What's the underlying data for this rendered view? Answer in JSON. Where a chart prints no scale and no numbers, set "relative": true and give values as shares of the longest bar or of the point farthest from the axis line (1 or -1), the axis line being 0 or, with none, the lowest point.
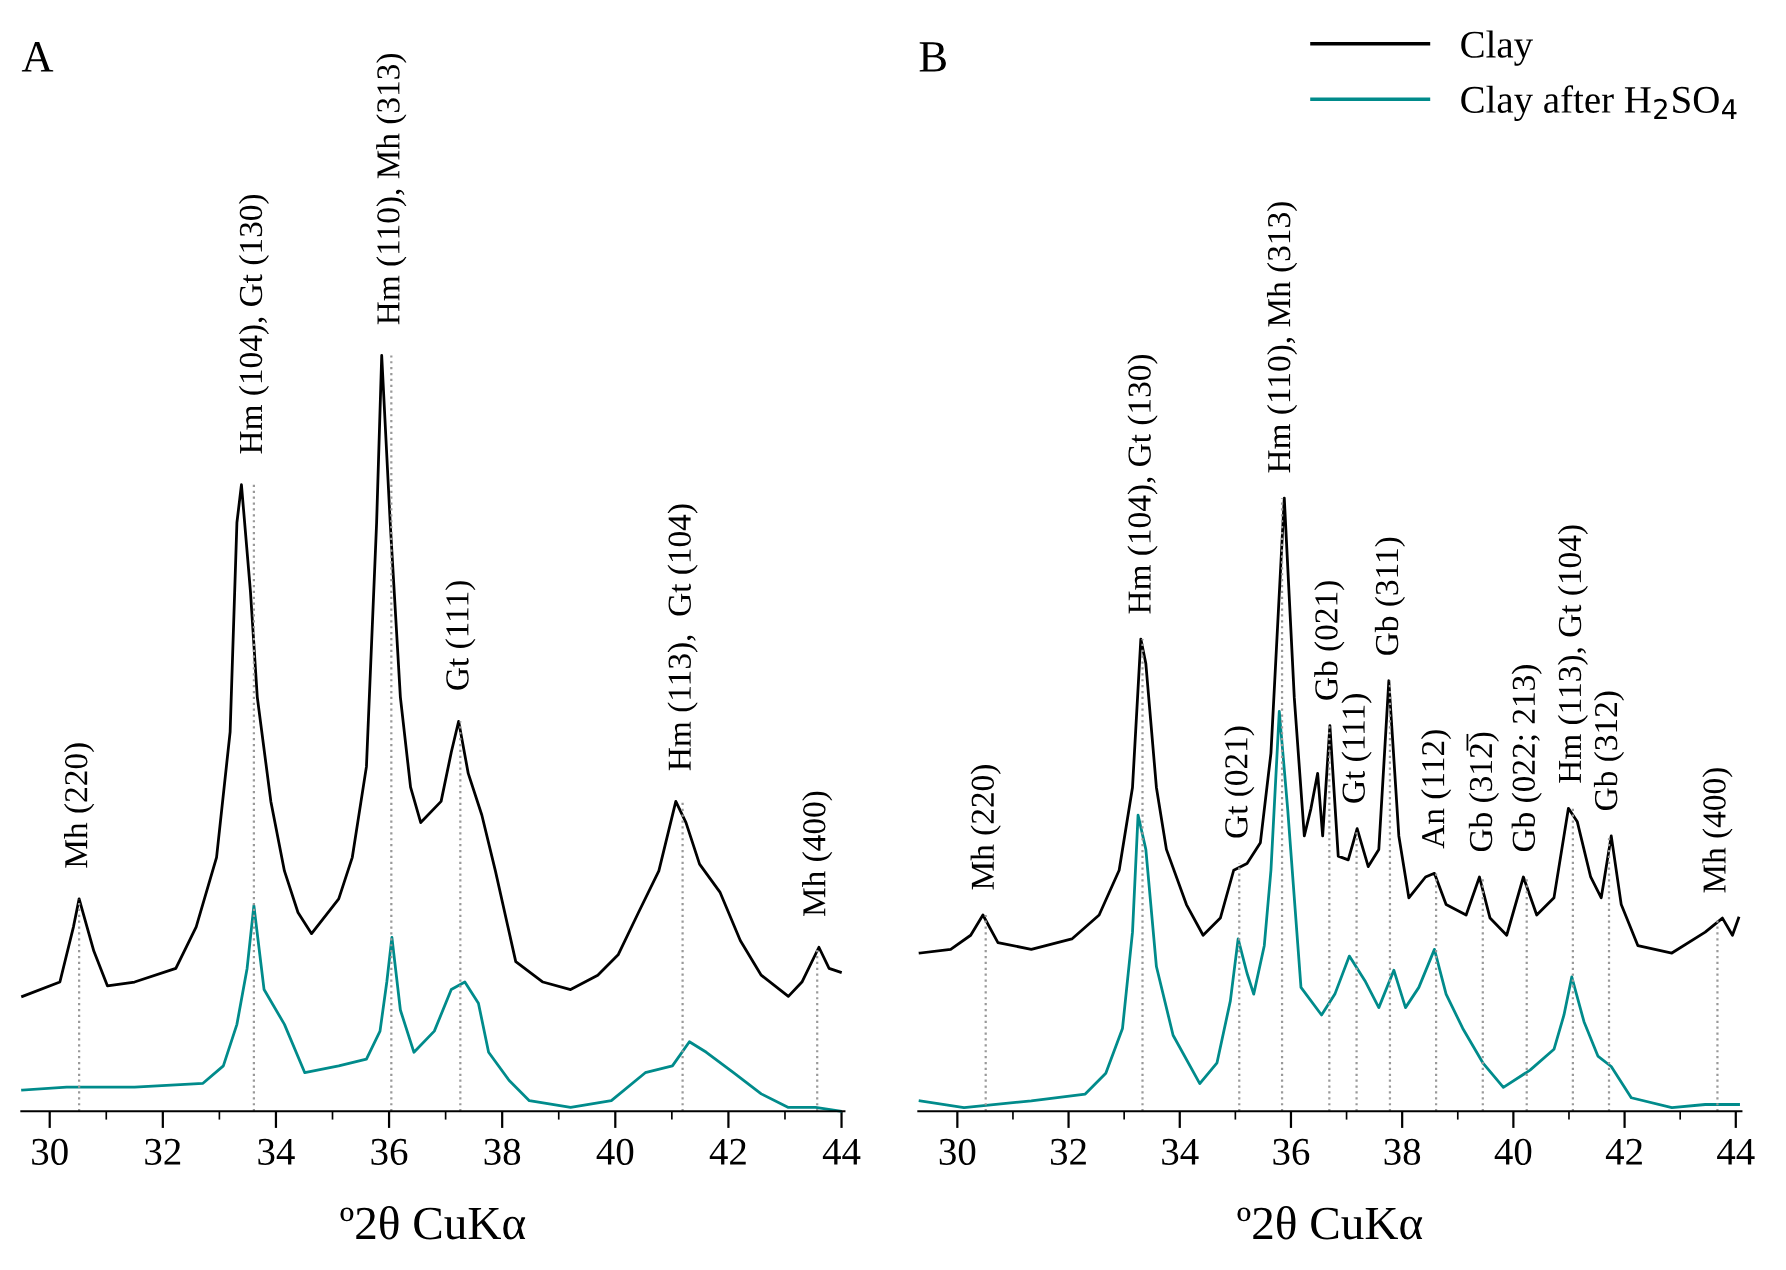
{
  "chart_data": [
    {
      "type": "line",
      "title": "A",
      "xlabel": "º2θ CuKα",
      "relative": true,
      "xlim": [
        29.5,
        44.05
      ],
      "xticks": [
        30,
        32,
        34,
        36,
        38,
        40,
        42,
        44
      ],
      "grid": false,
      "legend": false,
      "tick_labels": "x",
      "series": [
        {
          "color": "#000000",
          "x": [
            29.52,
            30.18,
            30.42,
            30.52,
            30.78,
            31.02,
            31.5,
            32.23,
            32.59,
            32.95,
            33.19,
            33.31,
            33.39,
            33.55,
            33.67,
            33.91,
            34.15,
            34.39,
            34.63,
            35.11,
            35.35,
            35.6,
            35.78,
            35.87,
            36.02,
            36.2,
            36.38,
            36.56,
            36.92,
            37.1,
            37.23,
            37.4,
            37.64,
            37.88,
            38.24,
            38.72,
            39.21,
            39.69,
            40.05,
            40.41,
            40.77,
            41.07,
            41.25,
            41.49,
            41.85,
            42.21,
            42.58,
            43.06,
            43.3,
            43.6,
            43.78,
            43.98
          ],
          "values": [
            0.152,
            0.171,
            0.244,
            0.281,
            0.212,
            0.166,
            0.171,
            0.189,
            0.244,
            0.336,
            0.502,
            0.779,
            0.829,
            0.687,
            0.548,
            0.41,
            0.318,
            0.263,
            0.235,
            0.281,
            0.336,
            0.456,
            0.779,
            1.0,
            0.779,
            0.548,
            0.429,
            0.382,
            0.41,
            0.475,
            0.516,
            0.447,
            0.392,
            0.318,
            0.198,
            0.171,
            0.161,
            0.18,
            0.207,
            0.263,
            0.318,
            0.41,
            0.382,
            0.327,
            0.29,
            0.226,
            0.18,
            0.152,
            0.171,
            0.217,
            0.189,
            0.184
          ]
        },
        {
          "color": "#008b8b",
          "x": [
            29.52,
            30.3,
            31.5,
            32.71,
            33.07,
            33.31,
            33.49,
            33.61,
            33.79,
            34.15,
            34.51,
            35.11,
            35.6,
            35.84,
            35.96,
            36.05,
            36.2,
            36.44,
            36.8,
            37.1,
            37.34,
            37.58,
            37.76,
            38.12,
            38.48,
            39.21,
            39.93,
            40.53,
            41.01,
            41.31,
            41.61,
            42.09,
            42.58,
            43.06,
            43.54,
            43.98
          ],
          "values": [
            0.028,
            0.032,
            0.032,
            0.037,
            0.06,
            0.115,
            0.189,
            0.272,
            0.161,
            0.115,
            0.051,
            0.06,
            0.069,
            0.106,
            0.171,
            0.23,
            0.134,
            0.078,
            0.106,
            0.161,
            0.171,
            0.143,
            0.078,
            0.041,
            0.014,
            0.005,
            0.014,
            0.051,
            0.06,
            0.092,
            0.078,
            0.051,
            0.023,
            0.005,
            0.005,
            0.0
          ]
        }
      ],
      "ref_lines": [
        {
          "axis": "x",
          "value": 30.52,
          "label": "Mh (220)",
          "color": "#999999",
          "line_style": "dotted"
        },
        {
          "axis": "x",
          "value": 33.61,
          "label": "Hm (104), Gt (130)",
          "color": "#999999",
          "line_style": "dotted"
        },
        {
          "axis": "x",
          "value": 36.04,
          "label": "Hm (110), Mh (313)",
          "color": "#999999",
          "line_style": "dotted"
        },
        {
          "axis": "x",
          "value": 37.26,
          "label": "Gt (111)",
          "color": "#999999",
          "line_style": "dotted"
        },
        {
          "axis": "x",
          "value": 41.19,
          "label": "Hm (113),  Gt (104)",
          "color": "#999999",
          "line_style": "dotted"
        },
        {
          "axis": "x",
          "value": 43.57,
          "label": "Mh (400)",
          "color": "#999999",
          "line_style": "dotted"
        }
      ]
    },
    {
      "type": "line",
      "title": "B",
      "xlabel": "º2θ CuKα",
      "relative": true,
      "xlim": [
        29.3,
        44.1
      ],
      "xticks": [
        30,
        32,
        34,
        36,
        38,
        40,
        42,
        44
      ],
      "grid": false,
      "legend": "top right",
      "tick_labels": "x",
      "series": [
        {
          "name": "Clay",
          "color": "#000000",
          "x": [
            29.33,
            29.88,
            30.24,
            30.46,
            30.73,
            31.33,
            32.06,
            32.55,
            32.91,
            33.15,
            33.3,
            33.39,
            33.58,
            33.76,
            34.12,
            34.42,
            34.73,
            34.97,
            35.21,
            35.45,
            35.64,
            35.88,
            36.06,
            36.24,
            36.36,
            36.48,
            36.57,
            36.7,
            36.85,
            37.03,
            37.19,
            37.39,
            37.58,
            37.76,
            37.94,
            38.12,
            38.42,
            38.58,
            38.79,
            39.15,
            39.39,
            39.58,
            39.88,
            40.18,
            40.42,
            40.73,
            40.99,
            41.15,
            41.39,
            41.58,
            41.76,
            41.94,
            42.24,
            42.85,
            43.45,
            43.76,
            43.94,
            44.05
          ],
          "values": [
            0.258,
            0.264,
            0.287,
            0.32,
            0.275,
            0.264,
            0.281,
            0.32,
            0.393,
            0.528,
            0.77,
            0.73,
            0.528,
            0.427,
            0.337,
            0.287,
            0.315,
            0.393,
            0.404,
            0.438,
            0.584,
            1.0,
            0.674,
            0.449,
            0.494,
            0.551,
            0.449,
            0.629,
            0.416,
            0.41,
            0.461,
            0.399,
            0.427,
            0.702,
            0.449,
            0.348,
            0.382,
            0.388,
            0.337,
            0.32,
            0.382,
            0.315,
            0.287,
            0.382,
            0.32,
            0.348,
            0.494,
            0.472,
            0.382,
            0.348,
            0.449,
            0.337,
            0.27,
            0.258,
            0.292,
            0.315,
            0.287,
            0.315
          ]
        },
        {
          "name": "Clay after H$_{2}$SO$_{4}$",
          "color": "#008b8b",
          "x": [
            29.33,
            30.12,
            31.33,
            32.3,
            32.67,
            32.97,
            33.15,
            33.25,
            33.39,
            33.58,
            33.88,
            34.36,
            34.67,
            34.91,
            35.05,
            35.21,
            35.33,
            35.52,
            35.64,
            35.79,
            35.94,
            36.18,
            36.55,
            36.79,
            37.05,
            37.33,
            37.58,
            37.85,
            38.06,
            38.3,
            38.58,
            38.79,
            39.09,
            39.45,
            39.82,
            40.3,
            40.73,
            40.91,
            41.05,
            41.27,
            41.52,
            41.76,
            42.12,
            42.85,
            43.45,
            44.05
          ],
          "values": [
            0.017,
            0.006,
            0.017,
            0.028,
            0.062,
            0.135,
            0.292,
            0.483,
            0.427,
            0.236,
            0.124,
            0.045,
            0.079,
            0.18,
            0.281,
            0.225,
            0.191,
            0.27,
            0.393,
            0.652,
            0.494,
            0.202,
            0.157,
            0.191,
            0.253,
            0.213,
            0.169,
            0.23,
            0.169,
            0.202,
            0.264,
            0.191,
            0.135,
            0.079,
            0.039,
            0.067,
            0.101,
            0.157,
            0.219,
            0.146,
            0.09,
            0.073,
            0.022,
            0.006,
            0.011,
            0.011
          ]
        }
      ],
      "ref_lines": [
        {
          "axis": "x",
          "value": 30.51,
          "label": "Mh (220)",
          "color": "#999999",
          "line_style": "dotted"
        },
        {
          "axis": "x",
          "value": 33.33,
          "label": "Hm (104), Gt (130)",
          "color": "#999999",
          "line_style": "dotted"
        },
        {
          "axis": "x",
          "value": 35.07,
          "label": "Gt (021)",
          "color": "#999999",
          "line_style": "dotted"
        },
        {
          "axis": "x",
          "value": 35.84,
          "label": "Hm (110), Mh (313)",
          "color": "#999999",
          "line_style": "dotted"
        },
        {
          "axis": "x",
          "value": 36.69,
          "label": "Gb (021)",
          "color": "#999999",
          "line_style": "dotted"
        },
        {
          "axis": "x",
          "value": 37.18,
          "label": "Gt (111)",
          "color": "#999999",
          "line_style": "dotted"
        },
        {
          "axis": "x",
          "value": 37.78,
          "label": "Gb (311)",
          "color": "#999999",
          "line_style": "dotted"
        },
        {
          "axis": "x",
          "value": 38.61,
          "label": "An (112)",
          "color": "#999999",
          "line_style": "dotted"
        },
        {
          "axis": "x",
          "value": 39.45,
          "label": "Gb (312̅)",
          "color": "#999999",
          "line_style": "dotted"
        },
        {
          "axis": "x",
          "value": 40.24,
          "label": "Gb (022; 213)",
          "color": "#999999",
          "line_style": "dotted"
        },
        {
          "axis": "x",
          "value": 41.07,
          "label": "Hm (113), Gt (104)",
          "color": "#999999",
          "line_style": "dotted"
        },
        {
          "axis": "x",
          "value": 41.72,
          "label": "Gb (312)",
          "color": "#999999",
          "line_style": "dotted"
        },
        {
          "axis": "x",
          "value": 43.67,
          "label": "Mh (400)",
          "color": "#999999",
          "line_style": "dotted"
        }
      ]
    }
  ]
}
